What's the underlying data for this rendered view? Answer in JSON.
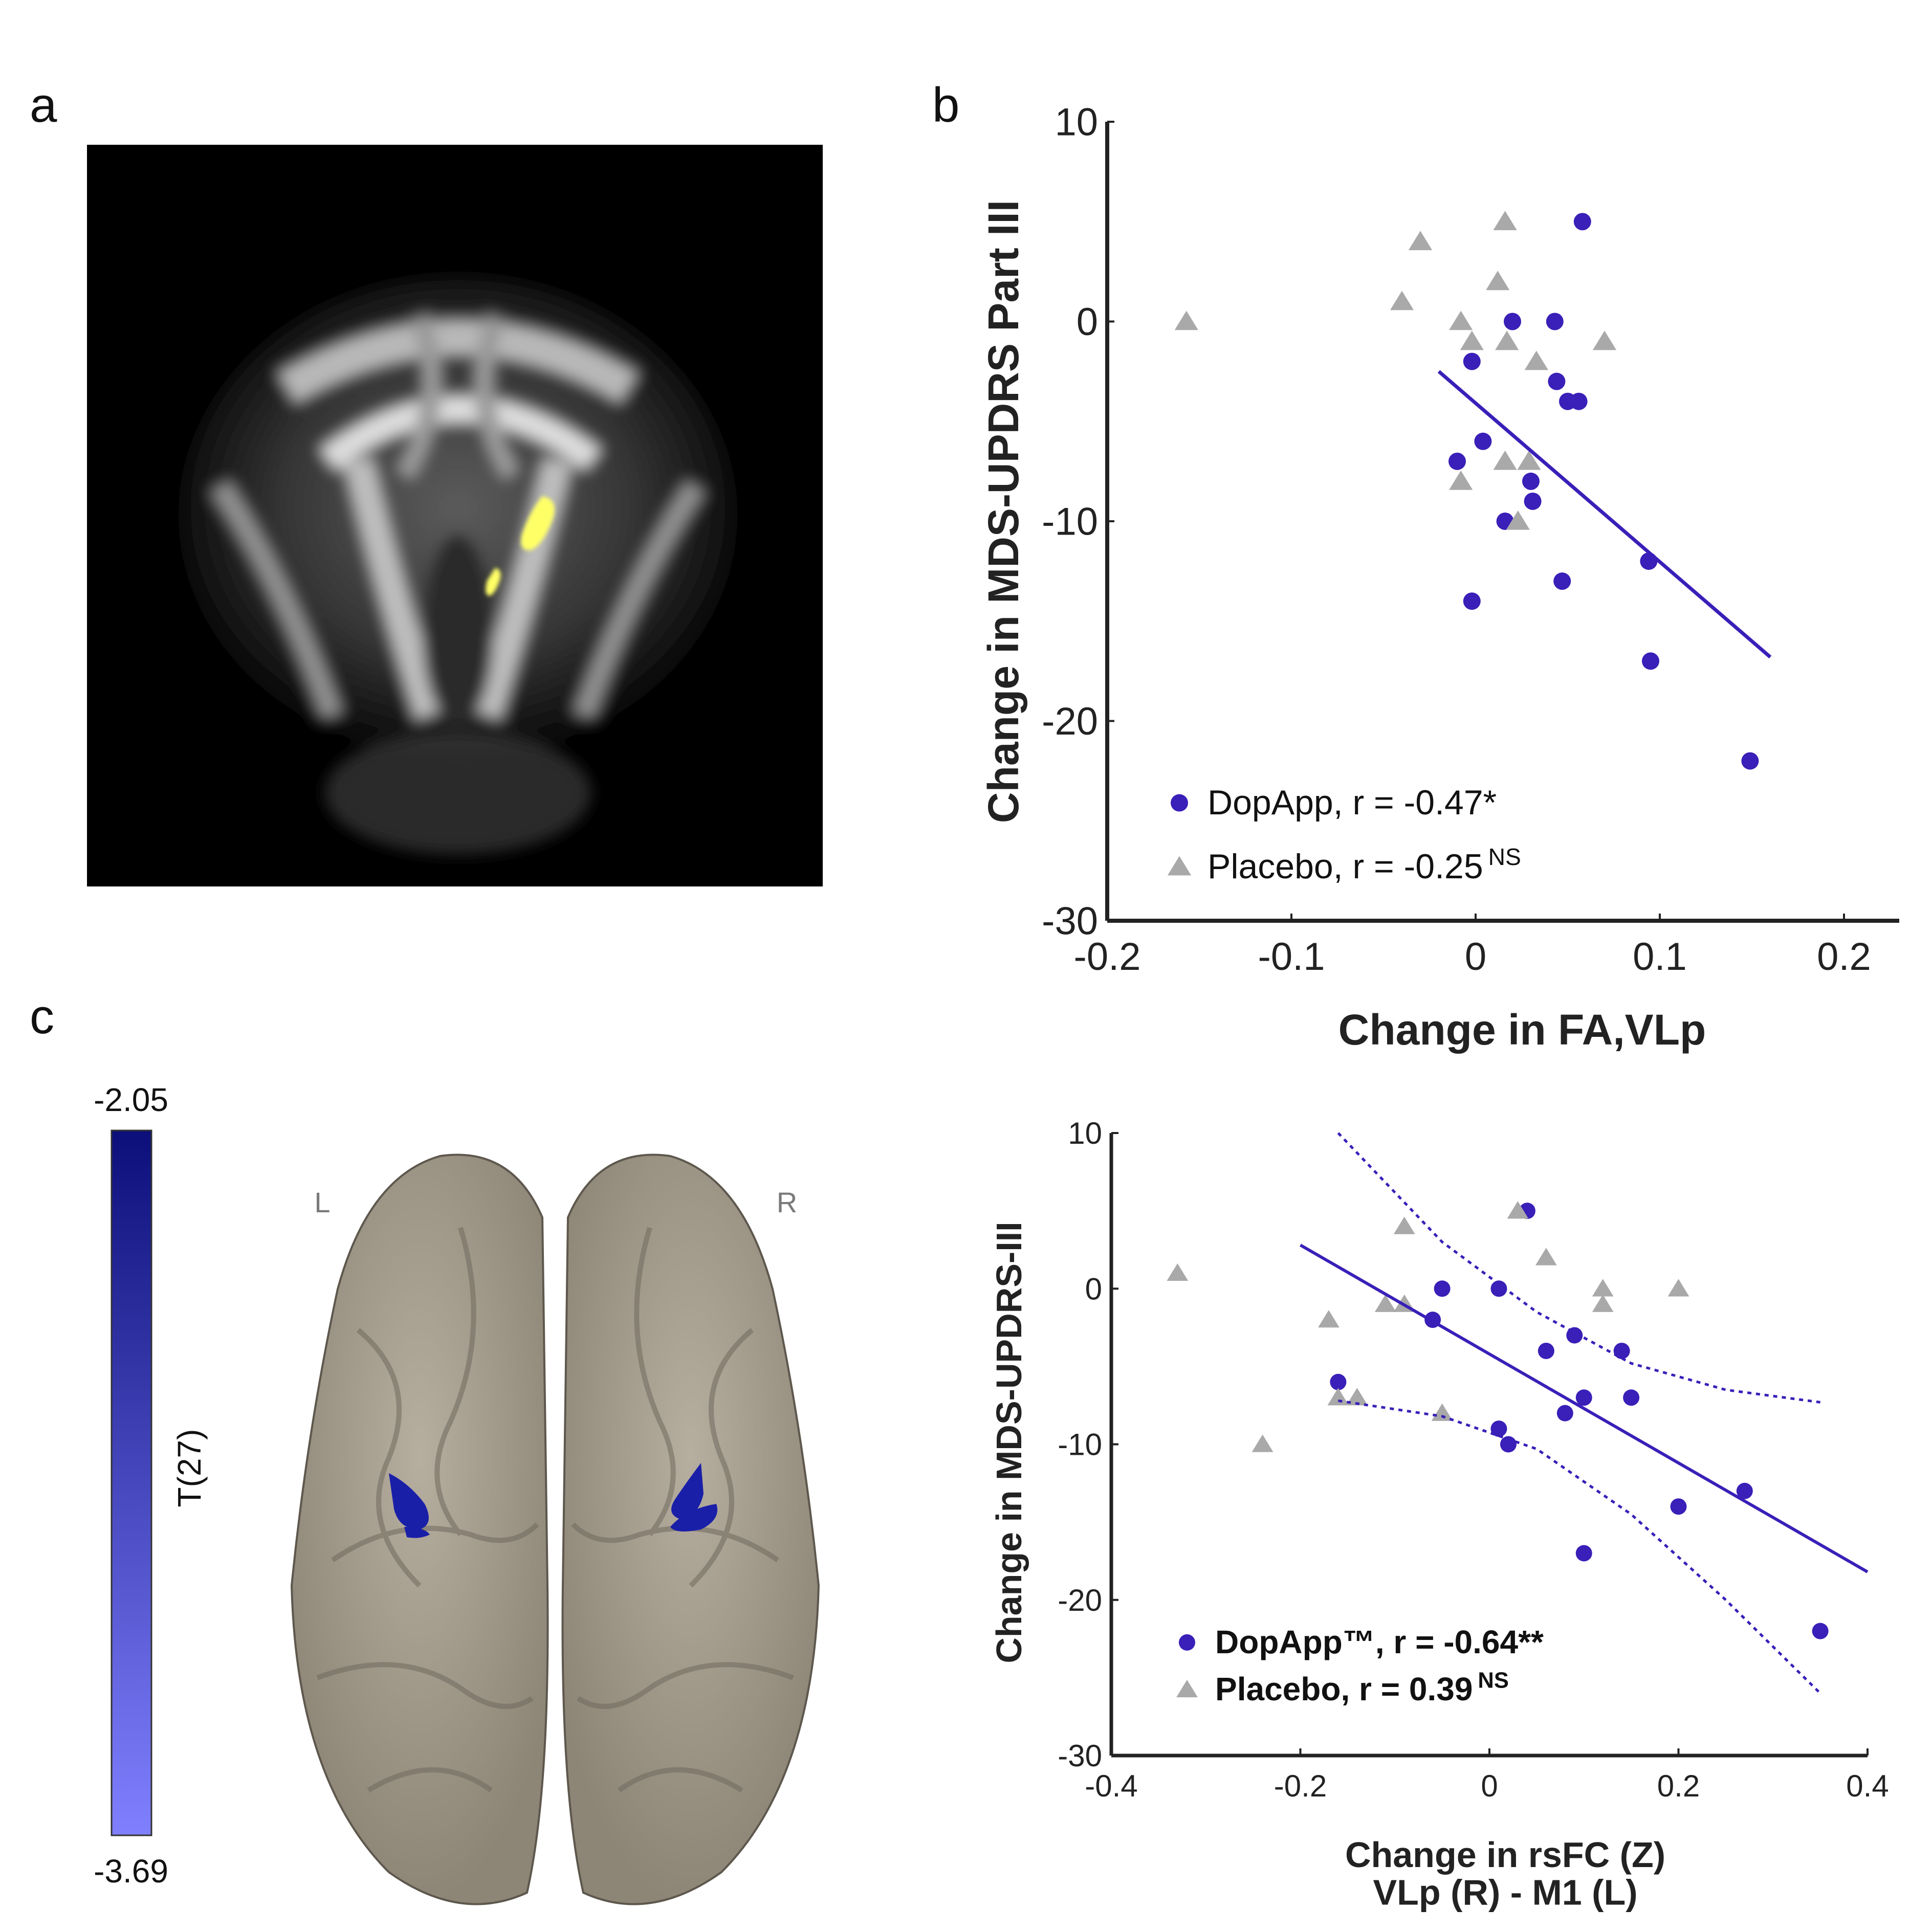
{
  "panels": {
    "a": "a",
    "b": "b",
    "c": "c"
  },
  "colorbar": {
    "top_label": "-2.05",
    "bottom_label": "-3.69",
    "title": "T(27)",
    "top_color": "#0c0f7a",
    "bottom_color": "#8080ff"
  },
  "brain_labels": {
    "left": "L",
    "right": "R"
  },
  "colors": {
    "dopapp": "#3a1fb8",
    "placebo": "#a9a9a9"
  },
  "chart_data": [
    {
      "type": "scatter",
      "id": "b",
      "xlabel": "Change in FA,VLp",
      "ylabel": "Change in  MDS-UPDRS Part III",
      "xlim": [
        -0.2,
        0.23
      ],
      "ylim": [
        -30,
        10
      ],
      "xticks": [
        -0.2,
        -0.1,
        0,
        0.1,
        0.2
      ],
      "xtick_labels": [
        "-0.2",
        "-0.1",
        "0",
        "0.1",
        "0.2"
      ],
      "yticks": [
        10,
        0,
        -10,
        -20,
        -30
      ],
      "ytick_labels": [
        "10",
        "0",
        "-10",
        "-20",
        "-30"
      ],
      "legend_position": "bottom-left",
      "series": [
        {
          "name": "DopApp, r = -0.47*",
          "marker": "circle",
          "color": "#3a1fb8",
          "points": [
            [
              0.058,
              5
            ],
            [
              0.02,
              0
            ],
            [
              0.043,
              0
            ],
            [
              -0.002,
              -2
            ],
            [
              0.044,
              -3
            ],
            [
              0.05,
              -4
            ],
            [
              0.056,
              -4
            ],
            [
              0.004,
              -6
            ],
            [
              -0.01,
              -7
            ],
            [
              0.03,
              -8
            ],
            [
              0.031,
              -9
            ],
            [
              0.016,
              -10
            ],
            [
              0.047,
              -13
            ],
            [
              -0.002,
              -14
            ],
            [
              0.094,
              -12
            ],
            [
              0.095,
              -17
            ],
            [
              0.149,
              -22
            ]
          ]
        },
        {
          "name": "Placebo, r = -0.25",
          "name_sup": "NS",
          "marker": "triangle",
          "color": "#a9a9a9",
          "points": [
            [
              -0.157,
              0
            ],
            [
              -0.03,
              4
            ],
            [
              -0.04,
              1
            ],
            [
              0.016,
              5
            ],
            [
              0.012,
              2
            ],
            [
              -0.008,
              0
            ],
            [
              -0.002,
              -1
            ],
            [
              0.017,
              -1
            ],
            [
              0.07,
              -1
            ],
            [
              0.033,
              -2
            ],
            [
              -0.008,
              -8
            ],
            [
              0.016,
              -7
            ],
            [
              0.029,
              -7
            ],
            [
              0.023,
              -10
            ]
          ]
        }
      ],
      "fit": {
        "series": "DopApp",
        "x": [
          -0.02,
          0.16
        ],
        "y": [
          -2.5,
          -16.8
        ]
      }
    },
    {
      "type": "scatter",
      "id": "c",
      "xlabel": "Change in rsFC (Z)",
      "xlabel2": "VLp (R) - M1 (L)",
      "ylabel": "Change in MDS-UPDRS-III",
      "xlim": [
        -0.4,
        0.4
      ],
      "ylim": [
        -30,
        10
      ],
      "xticks": [
        -0.4,
        -0.2,
        0,
        0.2,
        0.4
      ],
      "xtick_labels": [
        "-0.4",
        "-0.2",
        "0",
        "0.2",
        "0.4"
      ],
      "yticks": [
        10,
        0,
        -10,
        -20,
        -30
      ],
      "ytick_labels": [
        "10",
        "0",
        "-10",
        "-20",
        "-30"
      ],
      "legend_position": "bottom-left",
      "series": [
        {
          "name": "DopApp™, r = -0.64**",
          "marker": "circle",
          "color": "#3a1fb8",
          "points": [
            [
              0.04,
              5
            ],
            [
              -0.05,
              0
            ],
            [
              0.01,
              0
            ],
            [
              -0.06,
              -2
            ],
            [
              0.06,
              -4
            ],
            [
              0.09,
              -3
            ],
            [
              0.14,
              -4
            ],
            [
              0.1,
              -7
            ],
            [
              0.15,
              -7
            ],
            [
              0.08,
              -8
            ],
            [
              0.01,
              -9
            ],
            [
              0.02,
              -10
            ],
            [
              -0.16,
              -6
            ],
            [
              0.2,
              -14
            ],
            [
              0.27,
              -13
            ],
            [
              0.1,
              -17
            ],
            [
              0.35,
              -22
            ]
          ]
        },
        {
          "name": "Placebo, r = 0.39",
          "name_sup": "NS",
          "marker": "triangle",
          "color": "#a9a9a9",
          "points": [
            [
              -0.33,
              1
            ],
            [
              -0.09,
              4
            ],
            [
              0.03,
              5
            ],
            [
              0.06,
              2
            ],
            [
              -0.11,
              -1
            ],
            [
              -0.09,
              -1
            ],
            [
              0.12,
              -1
            ],
            [
              0.12,
              0
            ],
            [
              0.2,
              0
            ],
            [
              -0.17,
              -2
            ],
            [
              -0.16,
              -7
            ],
            [
              -0.14,
              -7
            ],
            [
              -0.05,
              -8
            ],
            [
              -0.24,
              -10
            ]
          ]
        }
      ],
      "fit": {
        "series": "DopApp",
        "x": [
          -0.2,
          0.4
        ],
        "y": [
          2.8,
          -18.2
        ]
      },
      "ci_upper": {
        "x": [
          -0.16,
          -0.05,
          0.05,
          0.15,
          0.25,
          0.35
        ],
        "y": [
          10,
          3,
          -1.5,
          -4.8,
          -6.5,
          -7.3
        ]
      },
      "ci_lower": {
        "x": [
          -0.16,
          -0.05,
          0.05,
          0.15,
          0.25,
          0.35
        ],
        "y": [
          -7.2,
          -8.2,
          -10.3,
          -14.5,
          -20,
          -26
        ]
      }
    }
  ]
}
